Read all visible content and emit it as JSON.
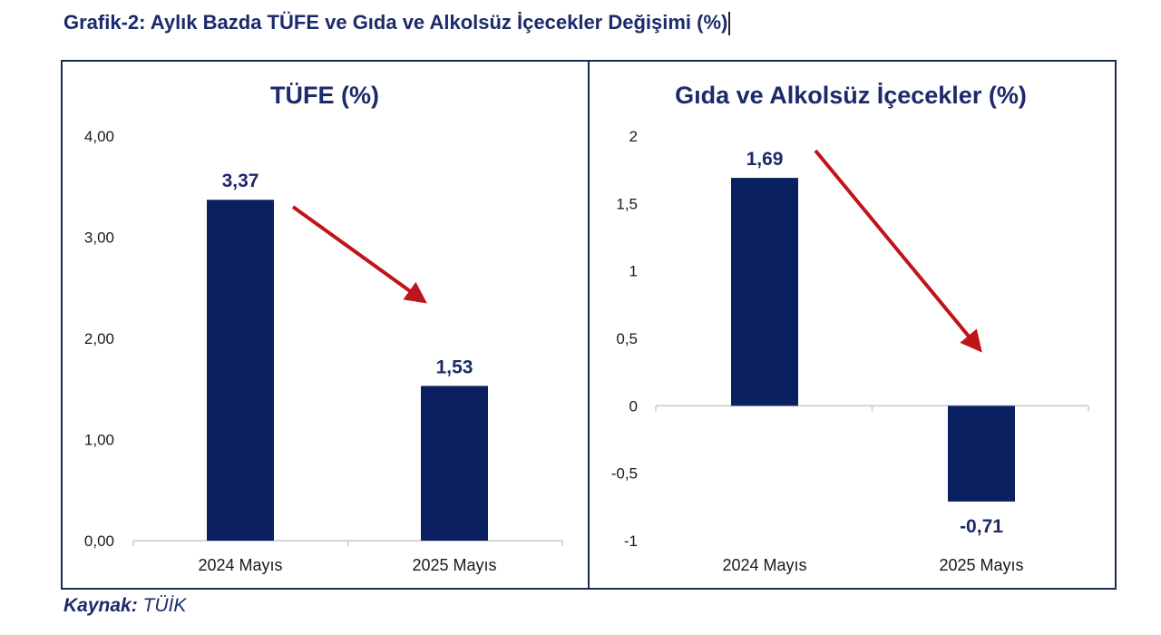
{
  "figure": {
    "title": "Grafik-2: Aylık Bazda TÜFE ve Gıda ve Alkolsüz İçecekler Değişimi (%)",
    "source_label": "Kaynak:",
    "source_value": "TÜİK"
  },
  "colors": {
    "bar": "#0b2060",
    "arrow": "#c0141a",
    "axis_text": "#1a1a1a",
    "title_text": "#1c2a6b",
    "baseline": "#c8c8c8"
  },
  "chart_data": [
    {
      "type": "bar",
      "title": "TÜFE (%)",
      "categories": [
        "2024 Mayıs",
        "2025 Mayıs"
      ],
      "values": [
        3.37,
        1.53
      ],
      "value_labels": [
        "3,37",
        "1,53"
      ],
      "ylim": [
        0,
        4
      ],
      "yticks": [
        0,
        1,
        2,
        3,
        4
      ],
      "ytick_labels": [
        "0,00",
        "1,00",
        "2,00",
        "3,00",
        "4,00"
      ],
      "xlabel": "",
      "ylabel": "",
      "grid": false,
      "annotation": "red-arrow-down"
    },
    {
      "type": "bar",
      "title": "Gıda ve Alkolsüz İçecekler (%)",
      "categories": [
        "2024 Mayıs",
        "2025 Mayıs"
      ],
      "values": [
        1.69,
        -0.71
      ],
      "value_labels": [
        "1,69",
        "-0,71"
      ],
      "ylim": [
        -1,
        2
      ],
      "yticks": [
        -1,
        -0.5,
        0,
        0.5,
        1,
        1.5,
        2
      ],
      "ytick_labels": [
        "-1",
        "-0,5",
        "0",
        "0,5",
        "1",
        "1,5",
        "2"
      ],
      "xlabel": "",
      "ylabel": "",
      "grid": false,
      "annotation": "red-arrow-down"
    }
  ]
}
